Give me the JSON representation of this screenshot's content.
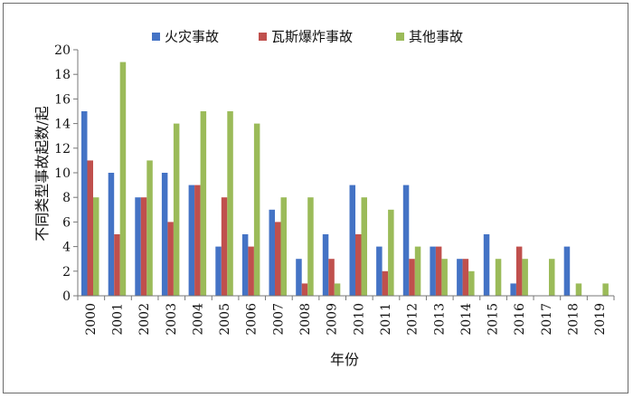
{
  "chart_data": {
    "type": "bar",
    "categories": [
      "2000",
      "2001",
      "2002",
      "2003",
      "2004",
      "2005",
      "2006",
      "2007",
      "2008",
      "2009",
      "2010",
      "2011",
      "2012",
      "2013",
      "2014",
      "2015",
      "2016",
      "2017",
      "2018",
      "2019"
    ],
    "series": [
      {
        "name": "火灾事故",
        "color": "#4473c5",
        "values": [
          15,
          10,
          8,
          10,
          9,
          4,
          5,
          7,
          3,
          5,
          9,
          4,
          9,
          4,
          3,
          5,
          1,
          0,
          4,
          0
        ]
      },
      {
        "name": "瓦斯爆炸事故",
        "color": "#c0504d",
        "values": [
          11,
          5,
          8,
          6,
          9,
          8,
          4,
          6,
          1,
          3,
          5,
          2,
          3,
          4,
          3,
          0,
          4,
          0,
          0,
          0
        ]
      },
      {
        "name": "其他事故",
        "color": "#9bbb59",
        "values": [
          8,
          19,
          11,
          14,
          15,
          15,
          14,
          8,
          8,
          1,
          8,
          7,
          4,
          3,
          2,
          3,
          3,
          3,
          1,
          1
        ]
      }
    ],
    "xlabel": "年份",
    "ylabel": "不同类型事故起数/起",
    "ylim": [
      0,
      20
    ],
    "yticks": [
      0,
      2,
      4,
      6,
      8,
      10,
      12,
      14,
      16,
      18,
      20
    ],
    "legend_position": "top",
    "grid": false
  }
}
